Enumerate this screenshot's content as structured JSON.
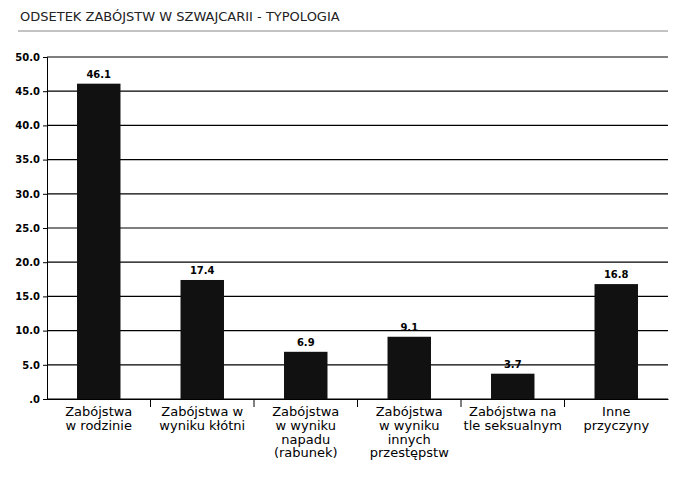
{
  "chart_data": {
    "type": "bar",
    "title": "ODSETEK ZABÓJSTW W SZWAJCARII - TYPOLOGIA",
    "categories": [
      "Zabójstwa\nw rodzinie",
      "Zabójstwa w\nwyniku kłótni",
      "Zabójstwa\nw wyniku\nnapadu\n(rabunek)",
      "Zabójstwa\nw wyniku\ninnych\nprzestępstw",
      "Zabójstwa na\ntle seksualnym",
      "Inne\nprzyczyny"
    ],
    "values": [
      46.1,
      17.4,
      6.9,
      9.1,
      3.7,
      16.8
    ],
    "color": "#111111",
    "ylim": [
      0,
      50
    ],
    "yticks": [
      {
        "value": 0,
        "label": ".0"
      },
      {
        "value": 5,
        "label": "5.0"
      },
      {
        "value": 10,
        "label": "10.0"
      },
      {
        "value": 15,
        "label": "15.0"
      },
      {
        "value": 20,
        "label": "20.0"
      },
      {
        "value": 25,
        "label": "25.0"
      },
      {
        "value": 30,
        "label": "30.0"
      },
      {
        "value": 35,
        "label": "35.0"
      },
      {
        "value": 40,
        "label": "40.0"
      },
      {
        "value": 45,
        "label": "45.0"
      },
      {
        "value": 50,
        "label": "50.0"
      }
    ],
    "grid": true,
    "data_labels": true
  }
}
